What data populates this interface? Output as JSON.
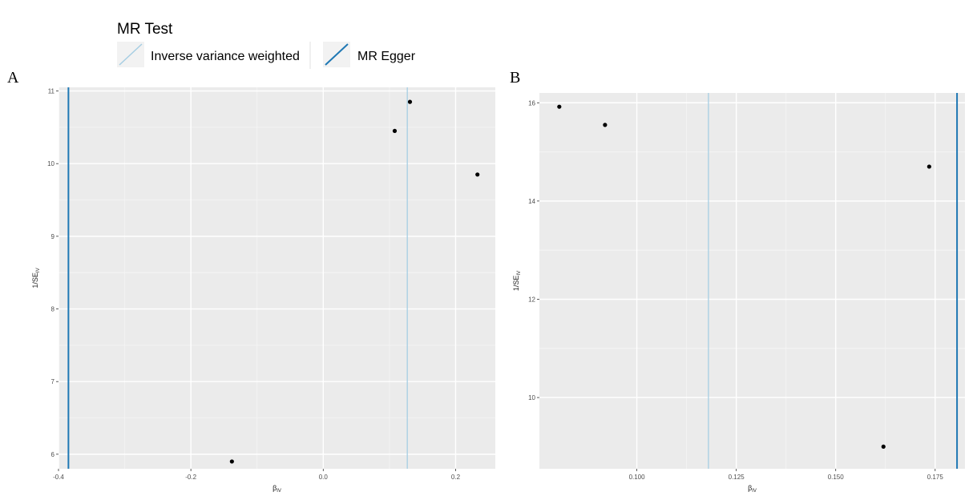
{
  "legend": {
    "title": "MR Test",
    "items": [
      {
        "label": "Inverse variance weighted",
        "color": "#a6cee3"
      },
      {
        "label": "MR Egger",
        "color": "#1f78b4"
      }
    ]
  },
  "panels": [
    {
      "letter": "A"
    },
    {
      "letter": "B"
    }
  ],
  "colors": {
    "panel_bg": "#ebebeb",
    "grid_major": "#ffffff",
    "grid_minor": "#f5f5f5",
    "point": "#000000",
    "ivw_line": "#a6cee3",
    "egger_line": "#1f78b4",
    "tick_text": "#4d4d4d"
  },
  "chart_data": [
    {
      "type": "scatter",
      "panel": "A",
      "xlabel": "βIV",
      "ylabel": "1/SEIV",
      "xlim": [
        -0.4,
        0.26
      ],
      "ylim": [
        5.8,
        11.05
      ],
      "x_ticks": [
        -0.4,
        -0.2,
        0.0,
        0.2
      ],
      "x_tick_labels": [
        "-0.4",
        "-0.2",
        "0.0",
        "0.2"
      ],
      "y_ticks": [
        6,
        7,
        8,
        9,
        10,
        11
      ],
      "y_tick_labels": [
        "6",
        "7",
        "8",
        "9",
        "10",
        "11"
      ],
      "grid": true,
      "points": [
        {
          "x": -0.138,
          "y": 5.9
        },
        {
          "x": 0.108,
          "y": 10.45
        },
        {
          "x": 0.131,
          "y": 10.85
        },
        {
          "x": 0.233,
          "y": 9.85
        }
      ],
      "vlines": [
        {
          "series": "MR Egger",
          "x": -0.385
        },
        {
          "series": "Inverse variance weighted",
          "x": 0.127
        }
      ]
    },
    {
      "type": "scatter",
      "panel": "B",
      "xlabel": "βIV",
      "ylabel": "1/SEIV",
      "xlim": [
        0.0755,
        0.1825
      ],
      "ylim": [
        8.55,
        16.2
      ],
      "x_ticks": [
        0.1,
        0.125,
        0.15,
        0.175
      ],
      "x_tick_labels": [
        "0.100",
        "0.125",
        "0.150",
        "0.175"
      ],
      "y_ticks": [
        10,
        12,
        14,
        16
      ],
      "y_tick_labels": [
        "10",
        "12",
        "14",
        "16"
      ],
      "grid": true,
      "points": [
        {
          "x": 0.0805,
          "y": 15.92
        },
        {
          "x": 0.092,
          "y": 15.55
        },
        {
          "x": 0.162,
          "y": 9.0
        },
        {
          "x": 0.1735,
          "y": 14.7
        }
      ],
      "vlines": [
        {
          "series": "Inverse variance weighted",
          "x": 0.118
        },
        {
          "series": "MR Egger",
          "x": 0.1805
        }
      ]
    }
  ]
}
